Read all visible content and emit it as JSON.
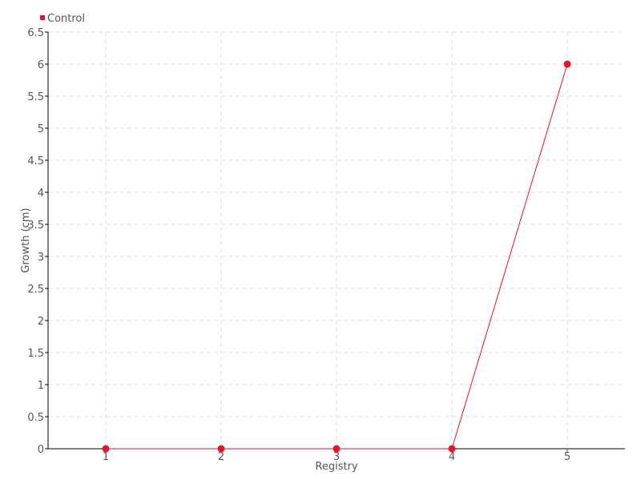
{
  "chart_data": {
    "type": "line",
    "title": "",
    "xlabel": "Registry",
    "ylabel": "Growth (cm)",
    "x": [
      1,
      2,
      3,
      4,
      5
    ],
    "xlim": [
      0.5,
      5.5
    ],
    "ylim": [
      0,
      6.5
    ],
    "y_ticks": [
      0,
      0.5,
      1,
      1.5,
      2,
      2.5,
      3,
      3.5,
      4,
      4.5,
      5,
      5.5,
      6,
      6.5
    ],
    "x_ticks": [
      1,
      2,
      3,
      4,
      5
    ],
    "grid": true,
    "legend_position": "top-left",
    "series": [
      {
        "name": "Control",
        "color": "#e8132b",
        "values": [
          0,
          0,
          0,
          0,
          6
        ]
      }
    ]
  }
}
